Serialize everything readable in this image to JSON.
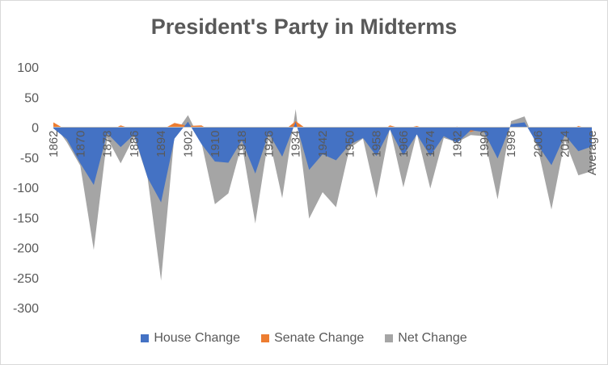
{
  "chart_data": {
    "type": "area",
    "title": "President's Party in Midterms",
    "x_tick_labels": [
      "1862",
      "1870",
      "1878",
      "1886",
      "1894",
      "1902",
      "1910",
      "1918",
      "1926",
      "1934",
      "1942",
      "1950",
      "1958",
      "1966",
      "1974",
      "1982",
      "1990",
      "1998",
      "2006",
      "2014",
      "Average"
    ],
    "ylim": [
      -300,
      100
    ],
    "y_ticks": [
      100,
      50,
      0,
      -50,
      -100,
      -150,
      -200,
      -250,
      -300
    ],
    "grid": false,
    "legend_position": "bottom",
    "x": [
      "1862",
      "1866",
      "1870",
      "1874",
      "1878",
      "1882",
      "1886",
      "1890",
      "1894",
      "1898",
      "1902",
      "1906",
      "1910",
      "1914",
      "1918",
      "1922",
      "1926",
      "1930",
      "1934",
      "1938",
      "1942",
      "1946",
      "1950",
      "1954",
      "1958",
      "1962",
      "1966",
      "1970",
      "1974",
      "1978",
      "1982",
      "1986",
      "1990",
      "1994",
      "1998",
      "2002",
      "2006",
      "2010",
      "2014",
      "2018",
      "Average"
    ],
    "series": [
      {
        "name": "House Change",
        "color": "#4472C4",
        "values": [
          -2,
          -20,
          -60,
          -96,
          -10,
          -33,
          -12,
          -84,
          -125,
          -19,
          9,
          -28,
          -57,
          -59,
          -22,
          -77,
          -10,
          -49,
          9,
          -71,
          -45,
          -55,
          -29,
          -18,
          -48,
          -4,
          -47,
          -12,
          -48,
          -15,
          -26,
          -5,
          -8,
          -52,
          5,
          8,
          -30,
          -63,
          -13,
          -40,
          -32
        ]
      },
      {
        "name": "Senate Change",
        "color": "#ED7D31",
        "values": [
          8,
          -5,
          -4,
          -8,
          -8,
          3,
          -4,
          0,
          -5,
          7,
          2,
          3,
          -10,
          -5,
          -6,
          -8,
          -6,
          -8,
          10,
          -6,
          -9,
          -12,
          -6,
          -1,
          -13,
          3,
          -3,
          2,
          -5,
          -3,
          1,
          -8,
          -1,
          -8,
          0,
          2,
          -6,
          -6,
          -9,
          2,
          -4
        ]
      },
      {
        "name": "Net Change",
        "color": "#A5A5A5",
        "values": [
          6,
          -25,
          -64,
          -204,
          -18,
          -60,
          -16,
          -84,
          -255,
          -12,
          20,
          -25,
          -128,
          -110,
          -28,
          -160,
          -16,
          -118,
          30,
          -152,
          -108,
          -133,
          -35,
          -19,
          -118,
          -1,
          -100,
          -10,
          -102,
          -18,
          -25,
          -13,
          -15,
          -120,
          10,
          18,
          -36,
          -137,
          -22,
          -80,
          -73
        ]
      }
    ]
  }
}
